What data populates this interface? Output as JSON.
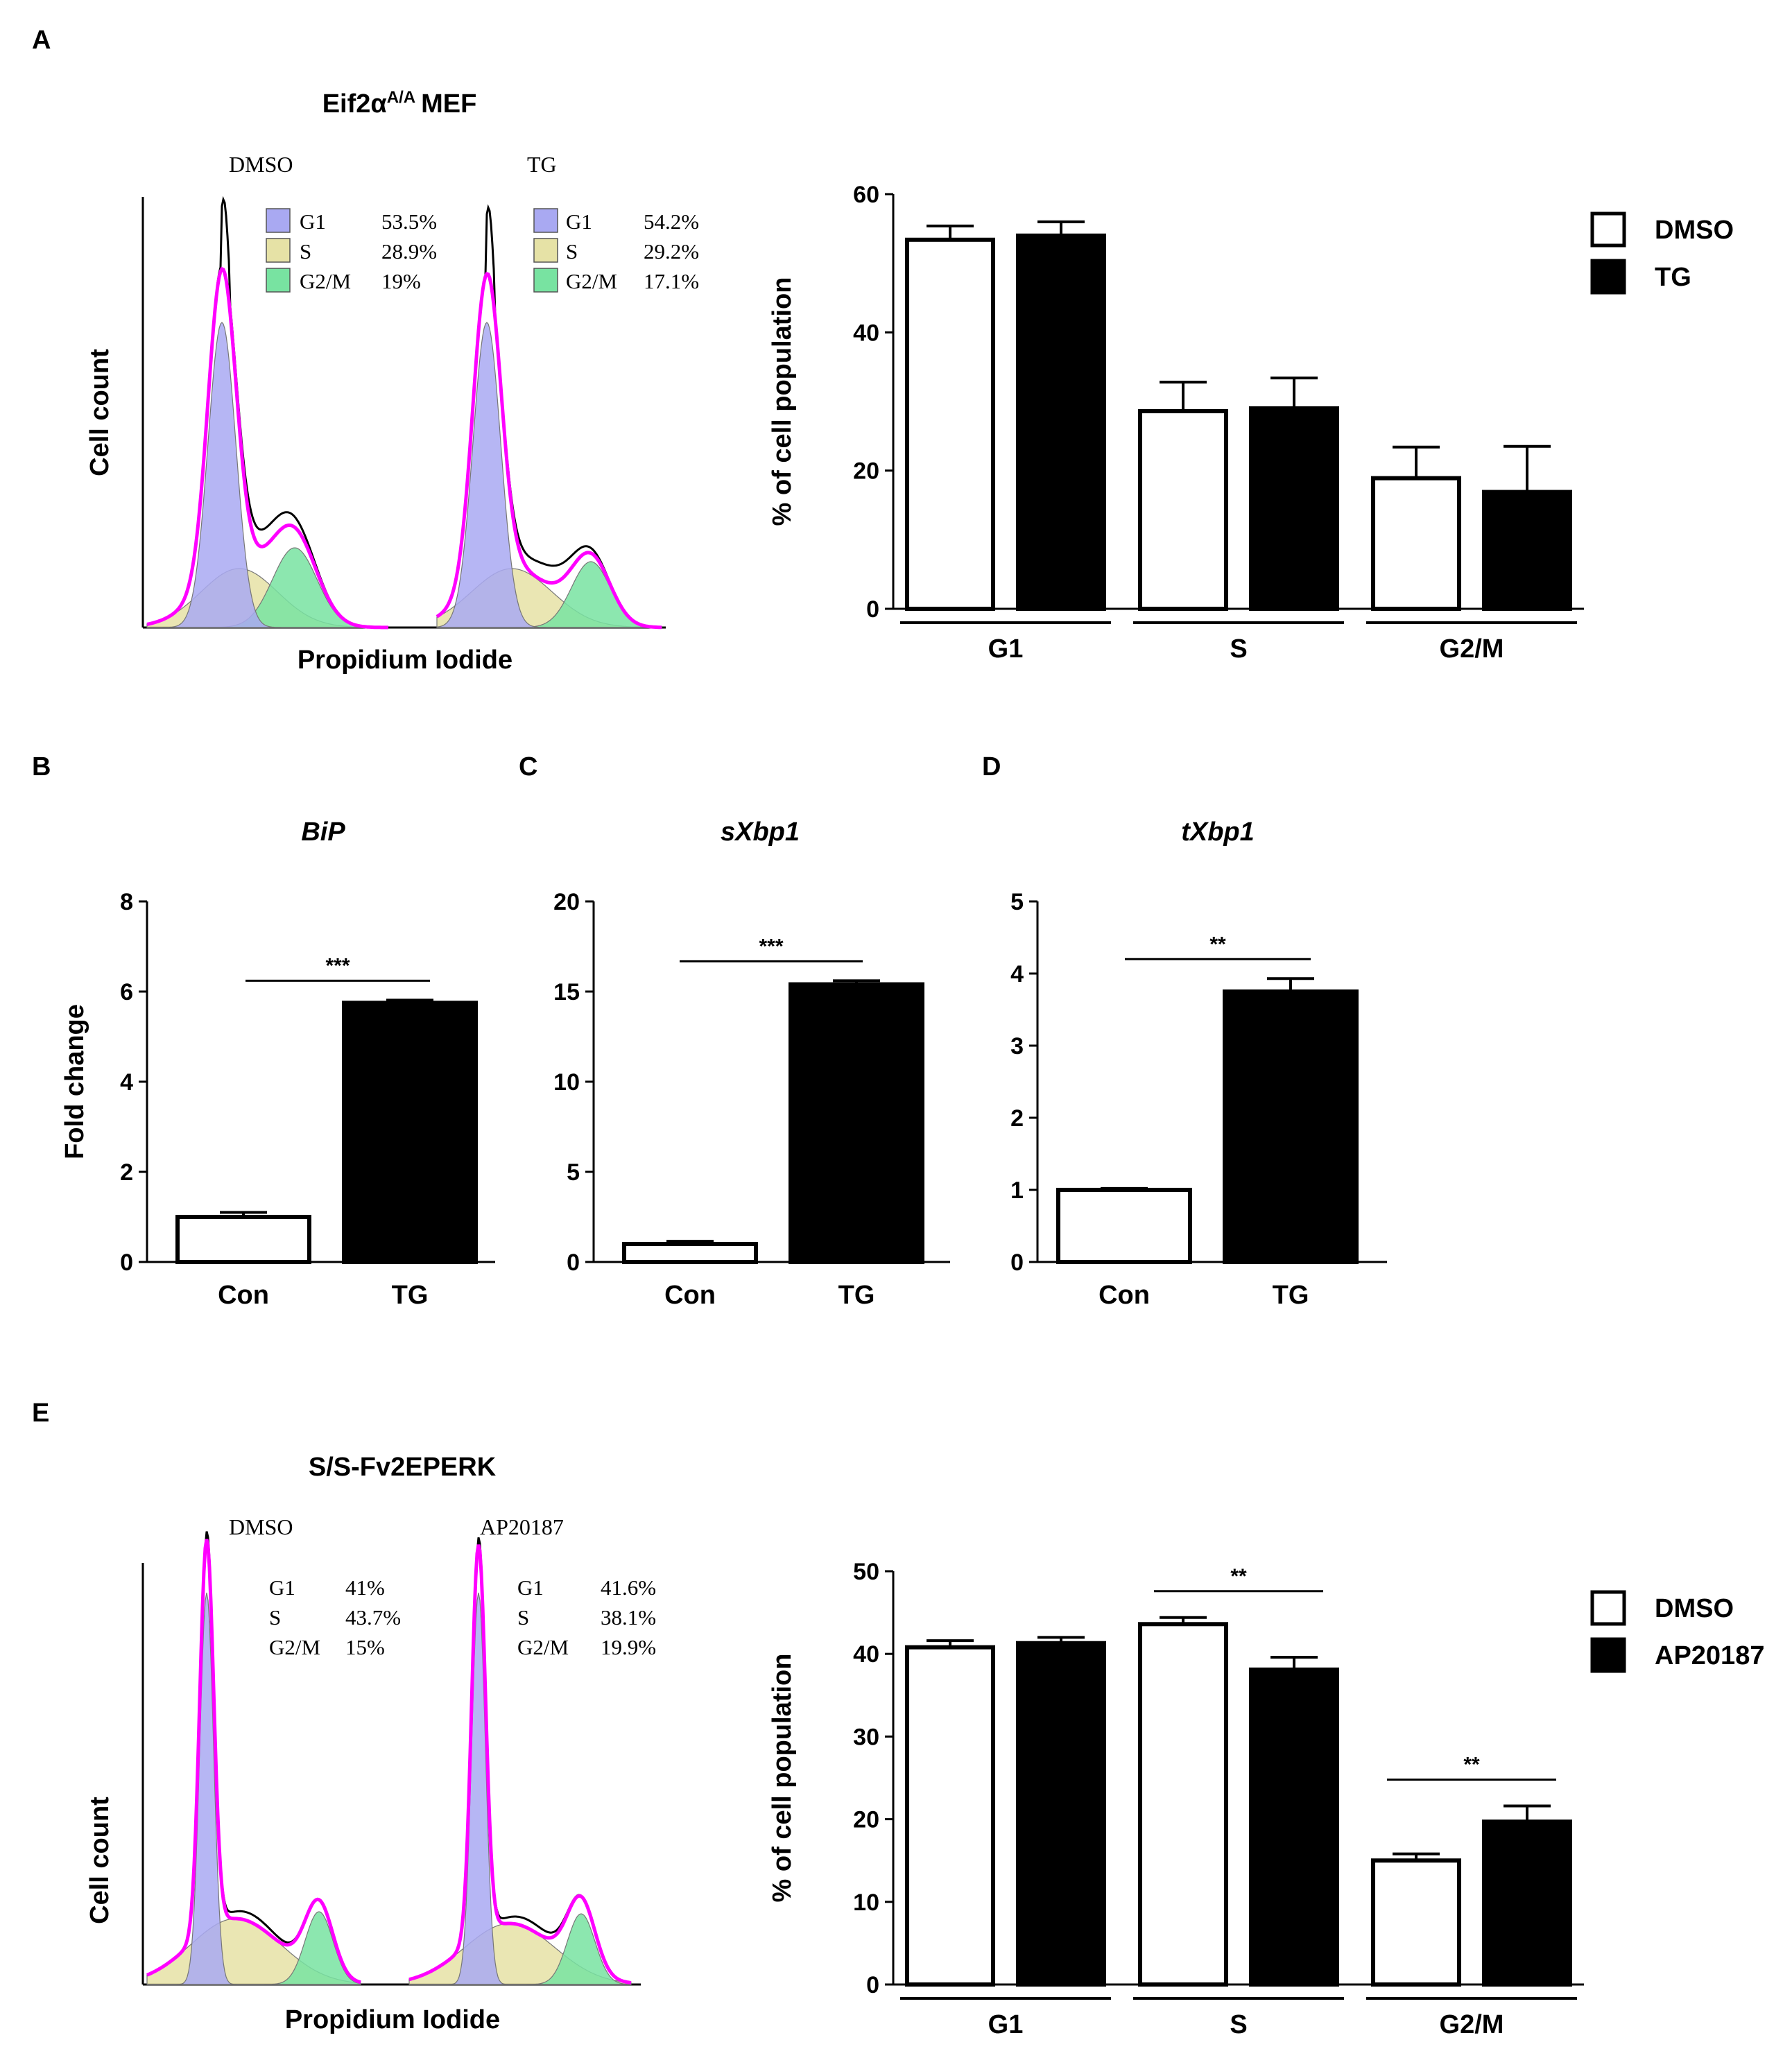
{
  "panels": {
    "A": "A",
    "B": "B",
    "C": "C",
    "D": "D",
    "E": "E"
  },
  "chart_data": [
    {
      "id": "A-hist",
      "type": "histogram",
      "title": "Eif2α",
      "title_sup": "A/A",
      "title_suffix": "MEF",
      "xlabel": "Propidium Iodide",
      "ylabel": "Cell count",
      "samples": [
        {
          "name": "DMSO",
          "phases": [
            {
              "phase": "G1",
              "value": "53.5%",
              "color": "#a9a9f2"
            },
            {
              "phase": "S",
              "value": "28.9%",
              "color": "#e6e2a6"
            },
            {
              "phase": "G2/M",
              "value": "19%",
              "color": "#78e3a1"
            }
          ]
        },
        {
          "name": "TG",
          "phases": [
            {
              "phase": "G1",
              "value": "54.2%",
              "color": "#a9a9f2"
            },
            {
              "phase": "S",
              "value": "29.2%",
              "color": "#e6e2a6"
            },
            {
              "phase": "G2/M",
              "value": "17.1%",
              "color": "#78e3a1"
            }
          ]
        }
      ]
    },
    {
      "id": "A-bar",
      "type": "bar",
      "categories": [
        "G1",
        "S",
        "G2/M"
      ],
      "series": [
        {
          "name": "DMSO",
          "fill": "#ffffff",
          "values": [
            53.4,
            28.6,
            18.9
          ],
          "errors": [
            2.0,
            4.2,
            4.5
          ]
        },
        {
          "name": "TG",
          "fill": "#000000",
          "values": [
            54.0,
            29.0,
            16.9
          ],
          "errors": [
            2.0,
            4.4,
            6.6
          ]
        }
      ],
      "ylabel": "% of cell population",
      "ylim": [
        0,
        60
      ],
      "yticks": [
        "0",
        "20",
        "40",
        "60"
      ],
      "legend_position": "top-right",
      "significance": []
    },
    {
      "id": "B",
      "type": "bar",
      "title": "BiP",
      "categories": [
        "Con",
        "TG"
      ],
      "values": [
        1.0,
        5.75
      ],
      "errors": [
        0.1,
        0.06
      ],
      "fills": [
        "#ffffff",
        "#000000"
      ],
      "ylabel": "Fold change",
      "ylim": [
        0,
        8
      ],
      "yticks": [
        "0",
        "2",
        "4",
        "6",
        "8"
      ],
      "significance": "***"
    },
    {
      "id": "C",
      "type": "bar",
      "title": "sXbp1",
      "categories": [
        "Con",
        "TG"
      ],
      "values": [
        1.0,
        15.4
      ],
      "errors": [
        0.15,
        0.2
      ],
      "fills": [
        "#ffffff",
        "#000000"
      ],
      "ylabel": "",
      "ylim": [
        0,
        20
      ],
      "yticks": [
        "0",
        "5",
        "10",
        "15",
        "20"
      ],
      "significance": "***"
    },
    {
      "id": "D",
      "type": "bar",
      "title": "tXbp1",
      "categories": [
        "Con",
        "TG"
      ],
      "values": [
        1.0,
        3.75
      ],
      "errors": [
        0.02,
        0.18
      ],
      "fills": [
        "#ffffff",
        "#000000"
      ],
      "ylabel": "",
      "ylim": [
        0,
        5
      ],
      "yticks": [
        "0",
        "1",
        "2",
        "3",
        "4",
        "5"
      ],
      "significance": "**"
    },
    {
      "id": "E-hist",
      "type": "histogram",
      "title": "S/S-Fv2EPERK",
      "xlabel": "Propidium Iodide",
      "ylabel": "Cell count",
      "samples": [
        {
          "name": "DMSO",
          "phases": [
            {
              "phase": "G1",
              "value": "41%"
            },
            {
              "phase": "S",
              "value": "43.7%"
            },
            {
              "phase": "G2/M",
              "value": "15%"
            }
          ]
        },
        {
          "name": "AP20187",
          "phases": [
            {
              "phase": "G1",
              "value": "41.6%"
            },
            {
              "phase": "S",
              "value": "38.1%"
            },
            {
              "phase": "G2/M",
              "value": "19.9%"
            }
          ]
        }
      ]
    },
    {
      "id": "E-bar",
      "type": "bar",
      "categories": [
        "G1",
        "S",
        "G2/M"
      ],
      "series": [
        {
          "name": "DMSO",
          "fill": "#ffffff",
          "values": [
            40.8,
            43.6,
            15.0
          ],
          "errors": [
            0.8,
            0.8,
            0.8
          ]
        },
        {
          "name": "AP20187",
          "fill": "#000000",
          "values": [
            41.3,
            38.1,
            19.7
          ],
          "errors": [
            0.7,
            1.5,
            1.9
          ]
        }
      ],
      "ylabel": "% of cell population",
      "ylim": [
        0,
        50
      ],
      "yticks": [
        "0",
        "10",
        "20",
        "30",
        "40",
        "50"
      ],
      "legend_position": "top-right",
      "significance": [
        {
          "category": "S",
          "label": "**"
        },
        {
          "category": "G2/M",
          "label": "**"
        }
      ]
    }
  ]
}
